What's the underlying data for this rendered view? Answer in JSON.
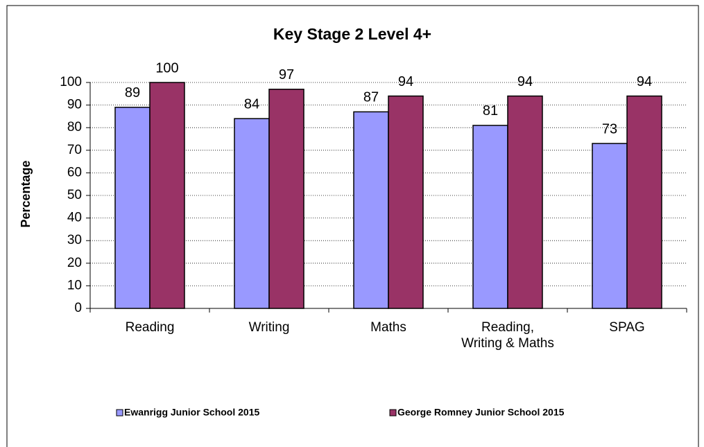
{
  "chart_data": {
    "type": "bar",
    "title": "Key Stage 2 Level 4+",
    "ylabel": "Percentage",
    "categories": [
      "Reading",
      "Writing",
      "Maths",
      "Reading,\nWriting & Maths",
      "SPAG"
    ],
    "series": [
      {
        "name": "Ewanrigg Junior School 2015",
        "color": "#9999ff",
        "values": [
          89,
          84,
          87,
          81,
          73
        ]
      },
      {
        "name": "George Romney Junior School 2015",
        "color": "#993366",
        "values": [
          100,
          97,
          94,
          94,
          94
        ]
      }
    ],
    "ylim": [
      0,
      100
    ],
    "yticks": [
      0,
      10,
      20,
      30,
      40,
      50,
      60,
      70,
      80,
      90,
      100
    ],
    "grid": true,
    "legend": "bottom"
  }
}
